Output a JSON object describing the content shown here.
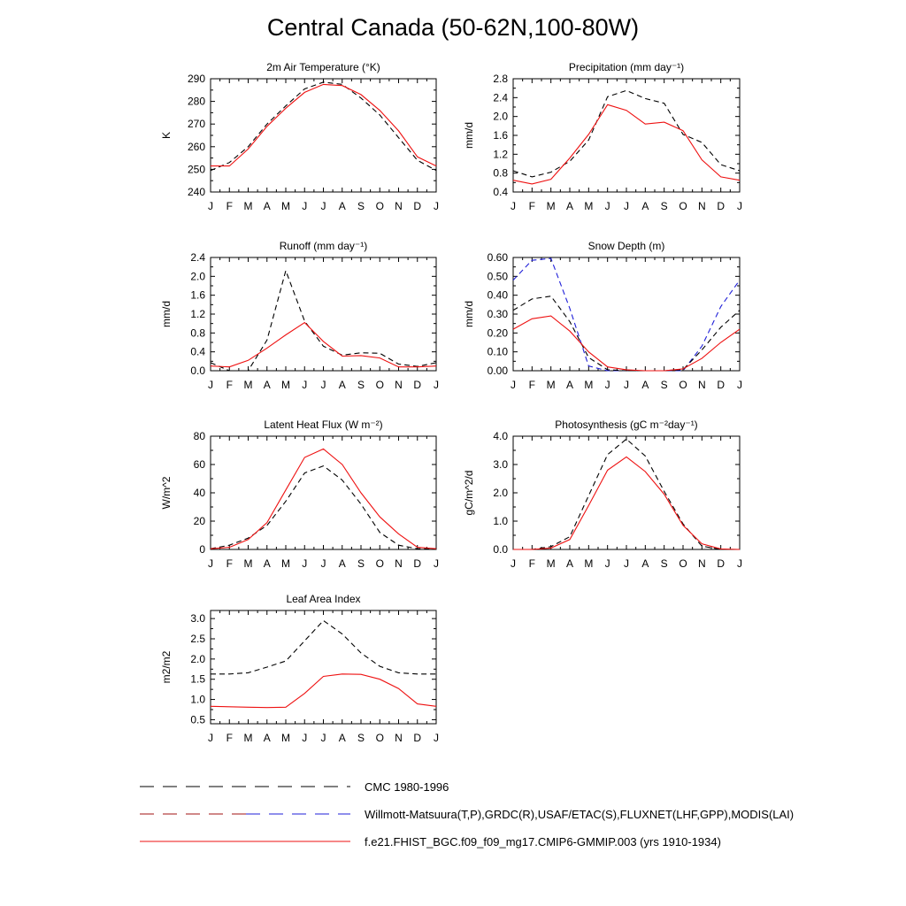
{
  "title": "Central Canada (50-62N,100-80W)",
  "months": [
    "J",
    "F",
    "M",
    "A",
    "M",
    "J",
    "J",
    "A",
    "S",
    "O",
    "N",
    "D",
    "J"
  ],
  "colors": {
    "cmc": "#000000",
    "obs": "#000000",
    "obs_blue": "#1f1fd8",
    "model": "#ee1111"
  },
  "legend": [
    {
      "label": "CMC 1980-1996",
      "style": "dashed-black"
    },
    {
      "label": "Willmott-Matsuura(T,P),GRDC(R),USAF/ETAC(S),FLUXNET(LHF,GPP),MODIS(LAI)",
      "style": "dashed-black-blue"
    },
    {
      "label": "f.e21.FHIST_BGC.f09_f09_mg17.CMIP6-GMMIP.003 (yrs 1910-1934)",
      "style": "solid-red"
    }
  ],
  "chart_data": [
    {
      "type": "line",
      "id": "tsa",
      "title": "2m Air Temperature (°K)",
      "ylabel": "K",
      "ylim": [
        240,
        290
      ],
      "yticks": [
        240,
        250,
        260,
        270,
        280,
        290
      ],
      "ytick_labels": [
        "240",
        "250",
        "260",
        "270",
        "280",
        "290"
      ],
      "series": [
        {
          "role": "obs",
          "dash": true,
          "color": "#000000",
          "values": [
            249.5,
            253,
            260,
            270,
            278,
            285.5,
            288.5,
            287.5,
            281.5,
            274,
            264,
            254,
            249.5
          ]
        },
        {
          "role": "model",
          "dash": false,
          "color": "#ee1111",
          "values": [
            251.5,
            251.5,
            259,
            269,
            277,
            284,
            287.5,
            287,
            283,
            276,
            267,
            255.5,
            251.5
          ]
        }
      ]
    },
    {
      "type": "line",
      "id": "precip",
      "title": "Precipitation (mm day⁻¹)",
      "ylabel": "mm/d",
      "ylim": [
        0.4,
        2.8
      ],
      "yticks": [
        0.4,
        0.8,
        1.2,
        1.6,
        2.0,
        2.4,
        2.8
      ],
      "ytick_labels": [
        "0.4",
        "0.8",
        "1.2",
        "1.6",
        "2.0",
        "2.4",
        "2.8"
      ],
      "series": [
        {
          "role": "obs",
          "dash": true,
          "color": "#000000",
          "values": [
            0.85,
            0.72,
            0.82,
            1.05,
            1.5,
            2.42,
            2.55,
            2.38,
            2.28,
            1.62,
            1.45,
            0.98,
            0.85
          ]
        },
        {
          "role": "model",
          "dash": false,
          "color": "#ee1111",
          "values": [
            0.65,
            0.57,
            0.67,
            1.12,
            1.62,
            2.25,
            2.13,
            1.84,
            1.88,
            1.7,
            1.08,
            0.72,
            0.65
          ]
        }
      ]
    },
    {
      "type": "line",
      "id": "runoff",
      "title": "Runoff (mm day⁻¹)",
      "ylabel": "mm/d",
      "ylim": [
        0.0,
        2.4
      ],
      "yticks": [
        0.0,
        0.4,
        0.8,
        1.2,
        1.6,
        2.0,
        2.4
      ],
      "ytick_labels": [
        "0.0",
        "0.4",
        "0.8",
        "1.2",
        "1.6",
        "2.0",
        "2.4"
      ],
      "series": [
        {
          "role": "obs",
          "dash": true,
          "color": "#000000",
          "values": [
            0.17,
            0.0,
            0.0,
            0.65,
            2.12,
            1.05,
            0.52,
            0.33,
            0.38,
            0.37,
            0.14,
            0.09,
            0.17
          ]
        },
        {
          "role": "model",
          "dash": false,
          "color": "#ee1111",
          "values": [
            0.1,
            0.08,
            0.22,
            0.48,
            0.76,
            1.02,
            0.62,
            0.31,
            0.32,
            0.27,
            0.08,
            0.08,
            0.1
          ]
        }
      ]
    },
    {
      "type": "line",
      "id": "snowdp",
      "title": "Snow Depth (m)",
      "ylabel": "mm/d",
      "ylim": [
        0.0,
        0.6
      ],
      "yticks": [
        0.0,
        0.1,
        0.2,
        0.3,
        0.4,
        0.5,
        0.6
      ],
      "ytick_labels": [
        "0.00",
        "0.10",
        "0.20",
        "0.30",
        "0.40",
        "0.50",
        "0.60"
      ],
      "series": [
        {
          "role": "obs",
          "dash": true,
          "color": "#1f1fd8",
          "values": [
            0.48,
            0.585,
            0.595,
            0.33,
            0.025,
            0.0,
            0.0,
            0.0,
            0.0,
            0.0,
            0.13,
            0.34,
            0.48
          ]
        },
        {
          "role": "cmc",
          "dash": true,
          "color": "#000000",
          "values": [
            0.32,
            0.38,
            0.395,
            0.26,
            0.07,
            0.005,
            0.0,
            0.0,
            0.0,
            0.005,
            0.11,
            0.23,
            0.32
          ]
        },
        {
          "role": "model",
          "dash": false,
          "color": "#ee1111",
          "values": [
            0.22,
            0.275,
            0.29,
            0.21,
            0.1,
            0.02,
            0.005,
            0.0,
            0.0,
            0.01,
            0.065,
            0.15,
            0.22
          ]
        }
      ]
    },
    {
      "type": "line",
      "id": "lhf",
      "title": "Latent Heat Flux (W m⁻²)",
      "ylabel": "W/m^2",
      "ylim": [
        0,
        80
      ],
      "yticks": [
        0,
        20,
        40,
        60,
        80
      ],
      "ytick_labels": [
        "0",
        "20",
        "40",
        "60",
        "80"
      ],
      "series": [
        {
          "role": "obs",
          "dash": true,
          "color": "#000000",
          "values": [
            0.5,
            3,
            8,
            17,
            34,
            54,
            59,
            49,
            32,
            12,
            3,
            0.5,
            0.5
          ]
        },
        {
          "role": "model",
          "dash": false,
          "color": "#ee1111",
          "values": [
            0.5,
            1.5,
            7,
            19,
            42,
            65,
            71,
            60,
            40,
            23,
            11,
            1.5,
            0.5
          ]
        }
      ]
    },
    {
      "type": "line",
      "id": "gpp",
      "title": "Photosynthesis (gC m⁻²day⁻¹)",
      "ylabel": "gC/m^2/d",
      "ylim": [
        0.0,
        4.0
      ],
      "yticks": [
        0.0,
        1.0,
        2.0,
        3.0,
        4.0
      ],
      "ytick_labels": [
        "0.0",
        "1.0",
        "2.0",
        "3.0",
        "4.0"
      ],
      "series": [
        {
          "role": "obs",
          "dash": true,
          "color": "#000000",
          "values": [
            0.0,
            0.0,
            0.1,
            0.45,
            1.9,
            3.35,
            3.9,
            3.3,
            2.05,
            0.9,
            0.12,
            0.0,
            0.0
          ]
        },
        {
          "role": "model",
          "dash": false,
          "color": "#ee1111",
          "values": [
            0.0,
            0.0,
            0.05,
            0.35,
            1.55,
            2.8,
            3.27,
            2.75,
            1.95,
            0.85,
            0.2,
            0.02,
            0.0
          ]
        }
      ]
    },
    {
      "type": "line",
      "id": "lai",
      "title": "Leaf Area Index",
      "ylabel": "m2/m2",
      "ylim": [
        0.4,
        3.2
      ],
      "yticks": [
        0.5,
        1.0,
        1.5,
        2.0,
        2.5,
        3.0
      ],
      "ytick_labels": [
        "0.5",
        "1.0",
        "1.5",
        "2.0",
        "2.5",
        "3.0"
      ],
      "series": [
        {
          "role": "obs",
          "dash": true,
          "color": "#000000",
          "values": [
            1.63,
            1.63,
            1.66,
            1.8,
            1.95,
            2.45,
            2.95,
            2.62,
            2.15,
            1.82,
            1.66,
            1.63,
            1.63
          ]
        },
        {
          "role": "model",
          "dash": false,
          "color": "#ee1111",
          "values": [
            0.83,
            0.82,
            0.81,
            0.8,
            0.81,
            1.15,
            1.57,
            1.63,
            1.62,
            1.5,
            1.27,
            0.89,
            0.83
          ]
        }
      ]
    }
  ]
}
